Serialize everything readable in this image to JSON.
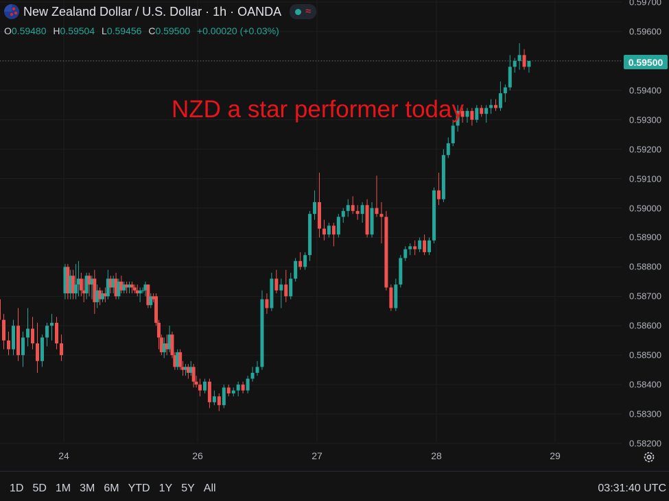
{
  "header": {
    "title": "New Zealand Dollar / U.S. Dollar · 1h · OANDA",
    "flag_icon": "nzd-usd-flag-icon",
    "status_icon": "market-open-dot-icon",
    "wave_icon": "wave-icon",
    "ohlc": {
      "o_label": "O",
      "o_value": "0.59480",
      "h_label": "H",
      "h_value": "0.59504",
      "l_label": "L",
      "l_value": "0.59456",
      "c_label": "C",
      "c_value": "0.59500",
      "change": "+0.00020 (+0.03%)"
    }
  },
  "annotation": "NZD a star performer today",
  "current_price": "0.59500",
  "time_ranges": [
    "1D",
    "5D",
    "1M",
    "3M",
    "6M",
    "YTD",
    "1Y",
    "5Y",
    "All"
  ],
  "clock": "03:31:40 UTC",
  "colors": {
    "up": "#26a69a",
    "down": "#ef5350",
    "annotation": "#e8141a",
    "background": "#131313",
    "grid": "#1f1f1f"
  },
  "chart_data": {
    "type": "candlestick",
    "title": "New Zealand Dollar / U.S. Dollar · 1h · OANDA",
    "xlabel": "",
    "ylabel": "",
    "ylim": [
      0.582,
      0.597
    ],
    "y_ticks": [
      "0.59700",
      "0.59600",
      "0.59500",
      "0.59400",
      "0.59300",
      "0.59200",
      "0.59100",
      "0.59000",
      "0.58900",
      "0.58800",
      "0.58700",
      "0.58600",
      "0.58500",
      "0.58400",
      "0.58300",
      "0.58200"
    ],
    "x_ticks": [
      {
        "label": "24",
        "x": 24.0
      },
      {
        "label": "26",
        "x": 26.0
      },
      {
        "label": "27",
        "x": 27.0
      },
      {
        "label": "28",
        "x": 28.0
      },
      {
        "label": "29",
        "x": 29.0
      }
    ],
    "xlim": [
      23.45,
      29.9
    ],
    "grid": true,
    "last_price_line": 0.595,
    "candles": [
      {
        "x": 23.46,
        "o": 0.5869,
        "h": 0.5871,
        "l": 0.586,
        "c": 0.5862
      },
      {
        "x": 23.5,
        "o": 0.5862,
        "h": 0.5864,
        "l": 0.5852,
        "c": 0.5855
      },
      {
        "x": 23.54,
        "o": 0.5855,
        "h": 0.5858,
        "l": 0.585,
        "c": 0.5852
      },
      {
        "x": 23.58,
        "o": 0.5852,
        "h": 0.5862,
        "l": 0.585,
        "c": 0.586
      },
      {
        "x": 23.62,
        "o": 0.586,
        "h": 0.5866,
        "l": 0.5848,
        "c": 0.585
      },
      {
        "x": 23.66,
        "o": 0.585,
        "h": 0.5858,
        "l": 0.5846,
        "c": 0.5856
      },
      {
        "x": 23.7,
        "o": 0.5856,
        "h": 0.5866,
        "l": 0.5853,
        "c": 0.5859
      },
      {
        "x": 23.74,
        "o": 0.5859,
        "h": 0.5863,
        "l": 0.5852,
        "c": 0.5854
      },
      {
        "x": 23.78,
        "o": 0.5854,
        "h": 0.5861,
        "l": 0.5844,
        "c": 0.5848
      },
      {
        "x": 23.82,
        "o": 0.5848,
        "h": 0.5857,
        "l": 0.5846,
        "c": 0.5856
      },
      {
        "x": 23.86,
        "o": 0.5856,
        "h": 0.5861,
        "l": 0.5853,
        "c": 0.586
      },
      {
        "x": 23.9,
        "o": 0.586,
        "h": 0.5864,
        "l": 0.5855,
        "c": 0.5861
      },
      {
        "x": 23.94,
        "o": 0.5861,
        "h": 0.5863,
        "l": 0.5852,
        "c": 0.5854
      },
      {
        "x": 23.98,
        "o": 0.5854,
        "h": 0.5857,
        "l": 0.5848,
        "c": 0.585
      },
      {
        "x": 24.02,
        "o": 0.5871,
        "h": 0.5881,
        "l": 0.5869,
        "c": 0.588
      },
      {
        "x": 24.06,
        "o": 0.588,
        "h": 0.5881,
        "l": 0.5869,
        "c": 0.5871
      },
      {
        "x": 24.1,
        "o": 0.5871,
        "h": 0.5879,
        "l": 0.5869,
        "c": 0.5877
      },
      {
        "x": 24.14,
        "o": 0.5877,
        "h": 0.5879,
        "l": 0.5869,
        "c": 0.5871
      },
      {
        "x": 24.18,
        "o": 0.5871,
        "h": 0.5881,
        "l": 0.5869,
        "c": 0.5874
      },
      {
        "x": 24.22,
        "o": 0.5874,
        "h": 0.5882,
        "l": 0.587,
        "c": 0.5876
      },
      {
        "x": 24.26,
        "o": 0.5876,
        "h": 0.5878,
        "l": 0.587,
        "c": 0.5872
      },
      {
        "x": 24.3,
        "o": 0.5872,
        "h": 0.5876,
        "l": 0.5868,
        "c": 0.5871
      },
      {
        "x": 24.34,
        "o": 0.5871,
        "h": 0.5878,
        "l": 0.5869,
        "c": 0.5877
      },
      {
        "x": 24.38,
        "o": 0.5877,
        "h": 0.5878,
        "l": 0.587,
        "c": 0.5874
      },
      {
        "x": 24.42,
        "o": 0.5874,
        "h": 0.5877,
        "l": 0.5869,
        "c": 0.5876
      },
      {
        "x": 24.46,
        "o": 0.5876,
        "h": 0.5879,
        "l": 0.5864,
        "c": 0.5868
      },
      {
        "x": 24.5,
        "o": 0.5868,
        "h": 0.5874,
        "l": 0.5866,
        "c": 0.5872
      },
      {
        "x": 24.54,
        "o": 0.5872,
        "h": 0.5873,
        "l": 0.5867,
        "c": 0.5869
      },
      {
        "x": 24.58,
        "o": 0.5869,
        "h": 0.5872,
        "l": 0.5868,
        "c": 0.5871
      },
      {
        "x": 24.62,
        "o": 0.5871,
        "h": 0.5873,
        "l": 0.5868,
        "c": 0.587
      },
      {
        "x": 24.66,
        "o": 0.587,
        "h": 0.5879,
        "l": 0.5869,
        "c": 0.5876
      },
      {
        "x": 24.7,
        "o": 0.5876,
        "h": 0.5877,
        "l": 0.5871,
        "c": 0.5873
      },
      {
        "x": 24.74,
        "o": 0.5873,
        "h": 0.5877,
        "l": 0.5871,
        "c": 0.5876
      },
      {
        "x": 24.78,
        "o": 0.5876,
        "h": 0.5878,
        "l": 0.5869,
        "c": 0.587
      },
      {
        "x": 24.82,
        "o": 0.587,
        "h": 0.5876,
        "l": 0.5869,
        "c": 0.5875
      },
      {
        "x": 24.86,
        "o": 0.5875,
        "h": 0.5877,
        "l": 0.5871,
        "c": 0.5872
      },
      {
        "x": 24.9,
        "o": 0.5872,
        "h": 0.5875,
        "l": 0.5871,
        "c": 0.5874
      },
      {
        "x": 24.94,
        "o": 0.5874,
        "h": 0.5875,
        "l": 0.5871,
        "c": 0.5873
      },
      {
        "x": 24.98,
        "o": 0.5873,
        "h": 0.5875,
        "l": 0.5871,
        "c": 0.5874
      },
      {
        "x": 25.02,
        "o": 0.5874,
        "h": 0.5875,
        "l": 0.5871,
        "c": 0.5873
      },
      {
        "x": 25.06,
        "o": 0.5873,
        "h": 0.5874,
        "l": 0.5871,
        "c": 0.5872
      },
      {
        "x": 25.1,
        "o": 0.5872,
        "h": 0.5874,
        "l": 0.587,
        "c": 0.5871
      },
      {
        "x": 25.14,
        "o": 0.5871,
        "h": 0.5873,
        "l": 0.5868,
        "c": 0.5872
      },
      {
        "x": 25.18,
        "o": 0.5872,
        "h": 0.5873,
        "l": 0.5871,
        "c": 0.5872
      },
      {
        "x": 25.22,
        "o": 0.5872,
        "h": 0.5875,
        "l": 0.587,
        "c": 0.5874
      },
      {
        "x": 25.26,
        "o": 0.5874,
        "h": 0.5874,
        "l": 0.5866,
        "c": 0.5867
      },
      {
        "x": 25.3,
        "o": 0.5867,
        "h": 0.5871,
        "l": 0.5866,
        "c": 0.587
      },
      {
        "x": 25.34,
        "o": 0.587,
        "h": 0.5871,
        "l": 0.5868,
        "c": 0.5869
      },
      {
        "x": 25.38,
        "o": 0.587,
        "h": 0.5871,
        "l": 0.586,
        "c": 0.5861
      },
      {
        "x": 25.42,
        "o": 0.5861,
        "h": 0.5862,
        "l": 0.5852,
        "c": 0.5856
      },
      {
        "x": 25.46,
        "o": 0.5856,
        "h": 0.5857,
        "l": 0.585,
        "c": 0.5851
      },
      {
        "x": 25.5,
        "o": 0.5851,
        "h": 0.5856,
        "l": 0.5849,
        "c": 0.5854
      },
      {
        "x": 25.54,
        "o": 0.5854,
        "h": 0.5857,
        "l": 0.585,
        "c": 0.5852
      },
      {
        "x": 25.58,
        "o": 0.5852,
        "h": 0.586,
        "l": 0.5851,
        "c": 0.5857
      },
      {
        "x": 25.62,
        "o": 0.5857,
        "h": 0.5858,
        "l": 0.5849,
        "c": 0.585
      },
      {
        "x": 25.66,
        "o": 0.585,
        "h": 0.5851,
        "l": 0.5845,
        "c": 0.5846
      },
      {
        "x": 25.7,
        "o": 0.5846,
        "h": 0.5852,
        "l": 0.5845,
        "c": 0.5851
      },
      {
        "x": 25.74,
        "o": 0.5851,
        "h": 0.5852,
        "l": 0.5845,
        "c": 0.5846
      },
      {
        "x": 25.78,
        "o": 0.5846,
        "h": 0.5848,
        "l": 0.5843,
        "c": 0.5845
      },
      {
        "x": 25.82,
        "o": 0.5845,
        "h": 0.5847,
        "l": 0.5843,
        "c": 0.5846
      },
      {
        "x": 25.86,
        "o": 0.5846,
        "h": 0.5847,
        "l": 0.5842,
        "c": 0.5844
      },
      {
        "x": 25.9,
        "o": 0.5844,
        "h": 0.5848,
        "l": 0.5843,
        "c": 0.5846
      },
      {
        "x": 25.94,
        "o": 0.5846,
        "h": 0.5847,
        "l": 0.5839,
        "c": 0.5841
      },
      {
        "x": 25.98,
        "o": 0.5841,
        "h": 0.5843,
        "l": 0.5839,
        "c": 0.584
      },
      {
        "x": 26.02,
        "o": 0.584,
        "h": 0.5842,
        "l": 0.5836,
        "c": 0.5838
      },
      {
        "x": 26.06,
        "o": 0.5838,
        "h": 0.5842,
        "l": 0.5837,
        "c": 0.5841
      },
      {
        "x": 26.1,
        "o": 0.5841,
        "h": 0.5842,
        "l": 0.5832,
        "c": 0.5834
      },
      {
        "x": 26.14,
        "o": 0.5834,
        "h": 0.5838,
        "l": 0.5833,
        "c": 0.5836
      },
      {
        "x": 26.18,
        "o": 0.5836,
        "h": 0.5837,
        "l": 0.5831,
        "c": 0.5833
      },
      {
        "x": 26.22,
        "o": 0.5833,
        "h": 0.584,
        "l": 0.5832,
        "c": 0.5839
      },
      {
        "x": 26.26,
        "o": 0.5839,
        "h": 0.584,
        "l": 0.5836,
        "c": 0.5837
      },
      {
        "x": 26.3,
        "o": 0.5837,
        "h": 0.5839,
        "l": 0.5836,
        "c": 0.5838
      },
      {
        "x": 26.34,
        "o": 0.5838,
        "h": 0.5841,
        "l": 0.5836,
        "c": 0.584
      },
      {
        "x": 26.38,
        "o": 0.584,
        "h": 0.5841,
        "l": 0.5837,
        "c": 0.5838
      },
      {
        "x": 26.42,
        "o": 0.5838,
        "h": 0.5843,
        "l": 0.5837,
        "c": 0.5842
      },
      {
        "x": 26.46,
        "o": 0.5842,
        "h": 0.5846,
        "l": 0.5841,
        "c": 0.5844
      },
      {
        "x": 26.5,
        "o": 0.5844,
        "h": 0.5848,
        "l": 0.5843,
        "c": 0.5846
      },
      {
        "x": 26.54,
        "o": 0.5846,
        "h": 0.5872,
        "l": 0.5845,
        "c": 0.5869
      },
      {
        "x": 26.58,
        "o": 0.5869,
        "h": 0.5871,
        "l": 0.5864,
        "c": 0.5866
      },
      {
        "x": 26.62,
        "o": 0.5866,
        "h": 0.5878,
        "l": 0.5865,
        "c": 0.5876
      },
      {
        "x": 26.66,
        "o": 0.5876,
        "h": 0.5879,
        "l": 0.5871,
        "c": 0.5872
      },
      {
        "x": 26.7,
        "o": 0.5872,
        "h": 0.5876,
        "l": 0.5866,
        "c": 0.5874
      },
      {
        "x": 26.74,
        "o": 0.5874,
        "h": 0.5879,
        "l": 0.5868,
        "c": 0.587
      },
      {
        "x": 26.78,
        "o": 0.587,
        "h": 0.5878,
        "l": 0.5869,
        "c": 0.5876
      },
      {
        "x": 26.82,
        "o": 0.5876,
        "h": 0.5883,
        "l": 0.5875,
        "c": 0.5882
      },
      {
        "x": 26.86,
        "o": 0.5882,
        "h": 0.5885,
        "l": 0.5879,
        "c": 0.588
      },
      {
        "x": 26.9,
        "o": 0.588,
        "h": 0.5885,
        "l": 0.5879,
        "c": 0.5884
      },
      {
        "x": 26.94,
        "o": 0.5884,
        "h": 0.5899,
        "l": 0.5882,
        "c": 0.5898
      },
      {
        "x": 26.98,
        "o": 0.5898,
        "h": 0.5906,
        "l": 0.5896,
        "c": 0.5902
      },
      {
        "x": 27.02,
        "o": 0.5902,
        "h": 0.5912,
        "l": 0.589,
        "c": 0.5893
      },
      {
        "x": 27.06,
        "o": 0.5893,
        "h": 0.5896,
        "l": 0.5889,
        "c": 0.5891
      },
      {
        "x": 27.1,
        "o": 0.5891,
        "h": 0.5895,
        "l": 0.589,
        "c": 0.5894
      },
      {
        "x": 27.14,
        "o": 0.5894,
        "h": 0.5895,
        "l": 0.5887,
        "c": 0.5891
      },
      {
        "x": 27.18,
        "o": 0.5891,
        "h": 0.5898,
        "l": 0.589,
        "c": 0.5897
      },
      {
        "x": 27.22,
        "o": 0.5897,
        "h": 0.59,
        "l": 0.5895,
        "c": 0.5899
      },
      {
        "x": 27.26,
        "o": 0.5899,
        "h": 0.5903,
        "l": 0.5897,
        "c": 0.5901
      },
      {
        "x": 27.3,
        "o": 0.5901,
        "h": 0.5904,
        "l": 0.5898,
        "c": 0.5899
      },
      {
        "x": 27.34,
        "o": 0.5899,
        "h": 0.5901,
        "l": 0.5896,
        "c": 0.5898
      },
      {
        "x": 27.38,
        "o": 0.5898,
        "h": 0.5902,
        "l": 0.5895,
        "c": 0.5901
      },
      {
        "x": 27.42,
        "o": 0.5901,
        "h": 0.5903,
        "l": 0.589,
        "c": 0.5891
      },
      {
        "x": 27.46,
        "o": 0.5891,
        "h": 0.5902,
        "l": 0.589,
        "c": 0.59
      },
      {
        "x": 27.5,
        "o": 0.59,
        "h": 0.5911,
        "l": 0.5897,
        "c": 0.5898
      },
      {
        "x": 27.54,
        "o": 0.5898,
        "h": 0.5902,
        "l": 0.5888,
        "c": 0.5897
      },
      {
        "x": 27.58,
        "o": 0.5897,
        "h": 0.5899,
        "l": 0.5872,
        "c": 0.5873
      },
      {
        "x": 27.62,
        "o": 0.5873,
        "h": 0.5874,
        "l": 0.5865,
        "c": 0.5866
      },
      {
        "x": 27.66,
        "o": 0.5866,
        "h": 0.5876,
        "l": 0.5865,
        "c": 0.5874
      },
      {
        "x": 27.7,
        "o": 0.5874,
        "h": 0.5884,
        "l": 0.5873,
        "c": 0.5883
      },
      {
        "x": 27.74,
        "o": 0.5883,
        "h": 0.5887,
        "l": 0.5882,
        "c": 0.5886
      },
      {
        "x": 27.78,
        "o": 0.5886,
        "h": 0.5888,
        "l": 0.5884,
        "c": 0.5887
      },
      {
        "x": 27.82,
        "o": 0.5887,
        "h": 0.5889,
        "l": 0.5884,
        "c": 0.5886
      },
      {
        "x": 27.86,
        "o": 0.5886,
        "h": 0.589,
        "l": 0.5885,
        "c": 0.5889
      },
      {
        "x": 27.9,
        "o": 0.5889,
        "h": 0.5891,
        "l": 0.5884,
        "c": 0.5885
      },
      {
        "x": 27.94,
        "o": 0.5885,
        "h": 0.589,
        "l": 0.5884,
        "c": 0.5889
      },
      {
        "x": 27.98,
        "o": 0.5889,
        "h": 0.5907,
        "l": 0.5888,
        "c": 0.5906
      },
      {
        "x": 28.02,
        "o": 0.5906,
        "h": 0.5912,
        "l": 0.5901,
        "c": 0.5903
      },
      {
        "x": 28.06,
        "o": 0.5903,
        "h": 0.592,
        "l": 0.5902,
        "c": 0.5918
      },
      {
        "x": 28.1,
        "o": 0.5918,
        "h": 0.5924,
        "l": 0.5917,
        "c": 0.5922
      },
      {
        "x": 28.14,
        "o": 0.5922,
        "h": 0.593,
        "l": 0.5921,
        "c": 0.5928
      },
      {
        "x": 28.18,
        "o": 0.5928,
        "h": 0.5935,
        "l": 0.5926,
        "c": 0.5933
      },
      {
        "x": 28.22,
        "o": 0.5933,
        "h": 0.5934,
        "l": 0.5929,
        "c": 0.5931
      },
      {
        "x": 28.26,
        "o": 0.5931,
        "h": 0.5934,
        "l": 0.5929,
        "c": 0.5933
      },
      {
        "x": 28.3,
        "o": 0.5933,
        "h": 0.5934,
        "l": 0.5928,
        "c": 0.593
      },
      {
        "x": 28.34,
        "o": 0.593,
        "h": 0.5935,
        "l": 0.5929,
        "c": 0.5934
      },
      {
        "x": 28.38,
        "o": 0.5934,
        "h": 0.5935,
        "l": 0.5931,
        "c": 0.5932
      },
      {
        "x": 28.42,
        "o": 0.5932,
        "h": 0.5935,
        "l": 0.5929,
        "c": 0.5934
      },
      {
        "x": 28.46,
        "o": 0.5934,
        "h": 0.5937,
        "l": 0.5932,
        "c": 0.5935
      },
      {
        "x": 28.5,
        "o": 0.5935,
        "h": 0.5937,
        "l": 0.5933,
        "c": 0.5934
      },
      {
        "x": 28.54,
        "o": 0.5934,
        "h": 0.5943,
        "l": 0.5933,
        "c": 0.5939
      },
      {
        "x": 28.58,
        "o": 0.5939,
        "h": 0.5942,
        "l": 0.5936,
        "c": 0.5941
      },
      {
        "x": 28.62,
        "o": 0.5941,
        "h": 0.5952,
        "l": 0.594,
        "c": 0.5948
      },
      {
        "x": 28.66,
        "o": 0.5948,
        "h": 0.5951,
        "l": 0.5946,
        "c": 0.595
      },
      {
        "x": 28.7,
        "o": 0.595,
        "h": 0.5956,
        "l": 0.5947,
        "c": 0.5952
      },
      {
        "x": 28.74,
        "o": 0.5952,
        "h": 0.5954,
        "l": 0.5947,
        "c": 0.5948
      },
      {
        "x": 28.78,
        "o": 0.5948,
        "h": 0.595,
        "l": 0.5946,
        "c": 0.595
      }
    ]
  }
}
